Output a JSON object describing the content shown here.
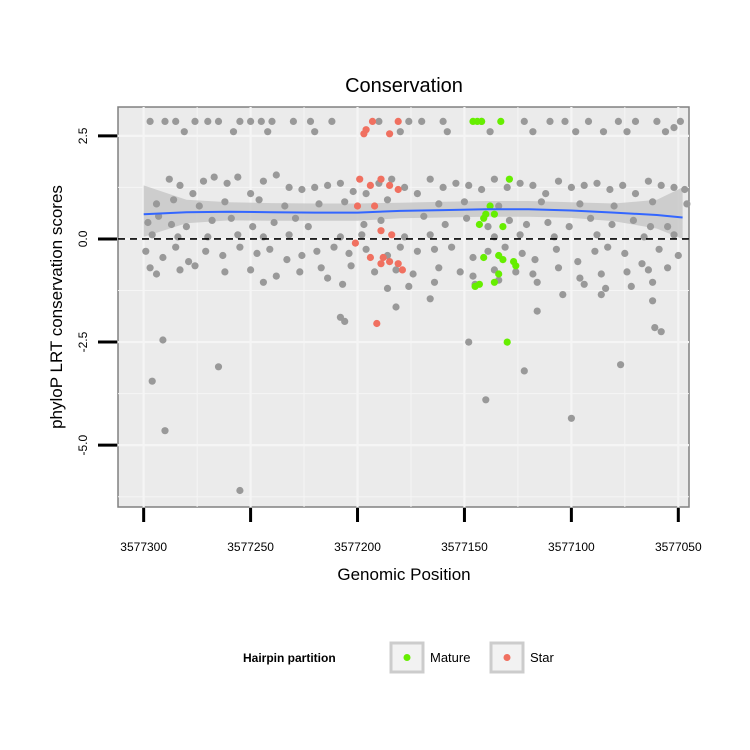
{
  "chart_data": {
    "type": "scatter",
    "title": "Conservation",
    "xlabel": "Genomic Position",
    "ylabel": "phyloP LRT conservation scores",
    "xlim": [
      3577312,
      3577045
    ],
    "ylim": [
      -6.5,
      3.2
    ],
    "x_reversed": true,
    "x_ticks": [
      3577300,
      3577250,
      3577200,
      3577150,
      3577100,
      3577050
    ],
    "x_tick_labels": [
      "3577300",
      "3577250",
      "3577200",
      "3577150",
      "3577100",
      "3577050"
    ],
    "y_ticks": [
      2.5,
      0.0,
      -2.5,
      -5.0
    ],
    "y_tick_labels": [
      "2.5",
      "0.0",
      "-2.5",
      "-5.0"
    ],
    "reference_line": {
      "y": 0,
      "style": "dashed",
      "color": "#000000"
    },
    "legend": {
      "title": "Hairpin partition",
      "position": "bottom",
      "entries": [
        {
          "label": "Mature",
          "color": "#66ee00"
        },
        {
          "label": "Star",
          "color": "#f07060"
        }
      ]
    },
    "colors": {
      "other": "#999999",
      "Mature": "#66ee00",
      "Star": "#f07060",
      "smooth": "#3366ff",
      "band": "#c8c8c8",
      "panel": "#ebebeb",
      "grid": "#f5f5f5"
    },
    "smooth": {
      "x": [
        3577300,
        3577280,
        3577260,
        3577240,
        3577220,
        3577200,
        3577180,
        3577160,
        3577140,
        3577120,
        3577100,
        3577080,
        3577060,
        3577048
      ],
      "y": [
        0.6,
        0.65,
        0.66,
        0.65,
        0.64,
        0.64,
        0.68,
        0.7,
        0.72,
        0.72,
        0.69,
        0.64,
        0.58,
        0.52
      ],
      "lower": [
        0.05,
        0.38,
        0.45,
        0.44,
        0.44,
        0.44,
        0.5,
        0.52,
        0.54,
        0.54,
        0.51,
        0.43,
        0.25,
        0.0
      ],
      "upper": [
        1.3,
        0.95,
        0.89,
        0.87,
        0.86,
        0.86,
        0.88,
        0.9,
        0.92,
        0.92,
        0.89,
        0.86,
        0.95,
        1.25
      ]
    },
    "series": [
      {
        "name": "Other",
        "points": [
          [
            3577297,
            2.85
          ],
          [
            3577290,
            2.85
          ],
          [
            3577285,
            2.85
          ],
          [
            3577276,
            2.85
          ],
          [
            3577270,
            2.85
          ],
          [
            3577265,
            2.85
          ],
          [
            3577255,
            2.85
          ],
          [
            3577250,
            2.85
          ],
          [
            3577245,
            2.85
          ],
          [
            3577240,
            2.85
          ],
          [
            3577230,
            2.85
          ],
          [
            3577222,
            2.85
          ],
          [
            3577212,
            2.85
          ],
          [
            3577190,
            2.85
          ],
          [
            3577176,
            2.85
          ],
          [
            3577170,
            2.85
          ],
          [
            3577160,
            2.85
          ],
          [
            3577142,
            2.85
          ],
          [
            3577122,
            2.85
          ],
          [
            3577110,
            2.85
          ],
          [
            3577103,
            2.85
          ],
          [
            3577092,
            2.85
          ],
          [
            3577078,
            2.85
          ],
          [
            3577070,
            2.85
          ],
          [
            3577060,
            2.85
          ],
          [
            3577049,
            2.85
          ],
          [
            3577281,
            2.6
          ],
          [
            3577258,
            2.6
          ],
          [
            3577242,
            2.6
          ],
          [
            3577220,
            2.6
          ],
          [
            3577180,
            2.6
          ],
          [
            3577158,
            2.6
          ],
          [
            3577138,
            2.6
          ],
          [
            3577118,
            2.6
          ],
          [
            3577098,
            2.6
          ],
          [
            3577085,
            2.6
          ],
          [
            3577074,
            2.6
          ],
          [
            3577056,
            2.6
          ],
          [
            3577052,
            2.7
          ],
          [
            3577288,
            1.45
          ],
          [
            3577283,
            1.3
          ],
          [
            3577277,
            1.1
          ],
          [
            3577272,
            1.4
          ],
          [
            3577267,
            1.5
          ],
          [
            3577261,
            1.35
          ],
          [
            3577256,
            1.5
          ],
          [
            3577250,
            1.1
          ],
          [
            3577244,
            1.4
          ],
          [
            3577238,
            1.55
          ],
          [
            3577232,
            1.25
          ],
          [
            3577226,
            1.2
          ],
          [
            3577220,
            1.25
          ],
          [
            3577214,
            1.3
          ],
          [
            3577208,
            1.35
          ],
          [
            3577202,
            1.15
          ],
          [
            3577196,
            1.1
          ],
          [
            3577190,
            1.35
          ],
          [
            3577184,
            1.45
          ],
          [
            3577178,
            1.25
          ],
          [
            3577172,
            1.1
          ],
          [
            3577166,
            1.45
          ],
          [
            3577160,
            1.25
          ],
          [
            3577154,
            1.35
          ],
          [
            3577148,
            1.3
          ],
          [
            3577142,
            1.2
          ],
          [
            3577136,
            1.45
          ],
          [
            3577130,
            1.25
          ],
          [
            3577124,
            1.35
          ],
          [
            3577118,
            1.3
          ],
          [
            3577112,
            1.1
          ],
          [
            3577106,
            1.4
          ],
          [
            3577100,
            1.25
          ],
          [
            3577094,
            1.3
          ],
          [
            3577088,
            1.35
          ],
          [
            3577082,
            1.2
          ],
          [
            3577076,
            1.3
          ],
          [
            3577070,
            1.1
          ],
          [
            3577064,
            1.4
          ],
          [
            3577058,
            1.3
          ],
          [
            3577052,
            1.25
          ],
          [
            3577047,
            1.2
          ],
          [
            3577294,
            0.85
          ],
          [
            3577286,
            0.95
          ],
          [
            3577274,
            0.8
          ],
          [
            3577262,
            0.9
          ],
          [
            3577246,
            0.95
          ],
          [
            3577234,
            0.8
          ],
          [
            3577218,
            0.85
          ],
          [
            3577206,
            0.9
          ],
          [
            3577186,
            0.95
          ],
          [
            3577162,
            0.85
          ],
          [
            3577150,
            0.9
          ],
          [
            3577134,
            0.8
          ],
          [
            3577114,
            0.9
          ],
          [
            3577096,
            0.85
          ],
          [
            3577080,
            0.8
          ],
          [
            3577062,
            0.9
          ],
          [
            3577046,
            0.85
          ],
          [
            3577298,
            0.4
          ],
          [
            3577293,
            0.55
          ],
          [
            3577287,
            0.35
          ],
          [
            3577280,
            0.3
          ],
          [
            3577268,
            0.45
          ],
          [
            3577259,
            0.5
          ],
          [
            3577249,
            0.3
          ],
          [
            3577239,
            0.4
          ],
          [
            3577229,
            0.5
          ],
          [
            3577223,
            0.3
          ],
          [
            3577197,
            0.35
          ],
          [
            3577189,
            0.45
          ],
          [
            3577169,
            0.55
          ],
          [
            3577159,
            0.35
          ],
          [
            3577149,
            0.5
          ],
          [
            3577139,
            0.3
          ],
          [
            3577129,
            0.45
          ],
          [
            3577121,
            0.35
          ],
          [
            3577111,
            0.4
          ],
          [
            3577101,
            0.3
          ],
          [
            3577091,
            0.5
          ],
          [
            3577081,
            0.35
          ],
          [
            3577071,
            0.45
          ],
          [
            3577063,
            0.3
          ],
          [
            3577055,
            0.3
          ],
          [
            3577296,
            0.1
          ],
          [
            3577284,
            0.05
          ],
          [
            3577270,
            0.05
          ],
          [
            3577256,
            0.1
          ],
          [
            3577244,
            0.05
          ],
          [
            3577232,
            0.1
          ],
          [
            3577208,
            0.05
          ],
          [
            3577198,
            0.1
          ],
          [
            3577178,
            0.05
          ],
          [
            3577166,
            0.1
          ],
          [
            3577136,
            0.05
          ],
          [
            3577124,
            0.1
          ],
          [
            3577108,
            0.05
          ],
          [
            3577088,
            0.1
          ],
          [
            3577066,
            0.05
          ],
          [
            3577052,
            0.1
          ],
          [
            3577299,
            -0.3
          ],
          [
            3577291,
            -0.45
          ],
          [
            3577285,
            -0.2
          ],
          [
            3577279,
            -0.55
          ],
          [
            3577271,
            -0.3
          ],
          [
            3577263,
            -0.4
          ],
          [
            3577255,
            -0.2
          ],
          [
            3577247,
            -0.35
          ],
          [
            3577241,
            -0.25
          ],
          [
            3577233,
            -0.5
          ],
          [
            3577226,
            -0.4
          ],
          [
            3577219,
            -0.3
          ],
          [
            3577211,
            -0.2
          ],
          [
            3577204,
            -0.35
          ],
          [
            3577196,
            -0.25
          ],
          [
            3577186,
            -0.4
          ],
          [
            3577180,
            -0.2
          ],
          [
            3577172,
            -0.3
          ],
          [
            3577164,
            -0.25
          ],
          [
            3577156,
            -0.2
          ],
          [
            3577146,
            -0.45
          ],
          [
            3577139,
            -0.3
          ],
          [
            3577131,
            -0.2
          ],
          [
            3577123,
            -0.35
          ],
          [
            3577117,
            -0.5
          ],
          [
            3577107,
            -0.25
          ],
          [
            3577097,
            -0.55
          ],
          [
            3577089,
            -0.3
          ],
          [
            3577083,
            -0.2
          ],
          [
            3577075,
            -0.35
          ],
          [
            3577067,
            -0.6
          ],
          [
            3577059,
            -0.25
          ],
          [
            3577050,
            -0.4
          ],
          [
            3577297,
            -0.7
          ],
          [
            3577294,
            -0.85
          ],
          [
            3577283,
            -0.75
          ],
          [
            3577276,
            -0.65
          ],
          [
            3577262,
            -0.8
          ],
          [
            3577250,
            -0.75
          ],
          [
            3577238,
            -0.9
          ],
          [
            3577227,
            -0.8
          ],
          [
            3577217,
            -0.7
          ],
          [
            3577203,
            -0.65
          ],
          [
            3577192,
            -0.8
          ],
          [
            3577182,
            -0.75
          ],
          [
            3577174,
            -0.85
          ],
          [
            3577162,
            -0.7
          ],
          [
            3577152,
            -0.8
          ],
          [
            3577146,
            -0.9
          ],
          [
            3577136,
            -0.75
          ],
          [
            3577126,
            -0.8
          ],
          [
            3577118,
            -0.85
          ],
          [
            3577106,
            -0.7
          ],
          [
            3577096,
            -0.95
          ],
          [
            3577086,
            -0.85
          ],
          [
            3577074,
            -0.8
          ],
          [
            3577064,
            -0.75
          ],
          [
            3577055,
            -0.7
          ],
          [
            3577244,
            -1.05
          ],
          [
            3577214,
            -0.95
          ],
          [
            3577207,
            -1.1
          ],
          [
            3577186,
            -1.2
          ],
          [
            3577176,
            -1.15
          ],
          [
            3577164,
            -1.05
          ],
          [
            3577145,
            -1.1
          ],
          [
            3577134,
            -1.0
          ],
          [
            3577116,
            -1.05
          ],
          [
            3577104,
            -1.35
          ],
          [
            3577094,
            -1.1
          ],
          [
            3577084,
            -1.2
          ],
          [
            3577072,
            -1.15
          ],
          [
            3577062,
            -1.05
          ],
          [
            3577208,
            -1.9
          ],
          [
            3577206,
            -2.0
          ],
          [
            3577182,
            -1.65
          ],
          [
            3577166,
            -1.45
          ],
          [
            3577116,
            -1.75
          ],
          [
            3577086,
            -1.35
          ],
          [
            3577062,
            -1.5
          ],
          [
            3577291,
            -2.45
          ],
          [
            3577148,
            -2.5
          ],
          [
            3577061,
            -2.15
          ],
          [
            3577058,
            -2.25
          ],
          [
            3577296,
            -3.45
          ],
          [
            3577265,
            -3.1
          ],
          [
            3577140,
            -3.9
          ],
          [
            3577122,
            -3.2
          ],
          [
            3577077,
            -3.05
          ],
          [
            3577100,
            -4.35
          ],
          [
            3577290,
            -4.65
          ],
          [
            3577255,
            -6.1
          ]
        ]
      },
      {
        "name": "Mature",
        "points": [
          [
            3577146,
            2.85
          ],
          [
            3577144,
            2.85
          ],
          [
            3577142,
            2.85
          ],
          [
            3577133,
            2.85
          ],
          [
            3577129,
            1.45
          ],
          [
            3577138,
            0.8
          ],
          [
            3577140,
            0.6
          ],
          [
            3577141,
            0.5
          ],
          [
            3577136,
            0.6
          ],
          [
            3577143,
            0.35
          ],
          [
            3577132,
            0.3
          ],
          [
            3577141,
            -0.45
          ],
          [
            3577134,
            -0.4
          ],
          [
            3577132,
            -0.5
          ],
          [
            3577127,
            -0.55
          ],
          [
            3577126,
            -0.65
          ],
          [
            3577134,
            -0.85
          ],
          [
            3577136,
            -1.05
          ],
          [
            3577143,
            -1.1
          ],
          [
            3577145,
            -1.15
          ],
          [
            3577130,
            -2.5
          ]
        ]
      },
      {
        "name": "Star",
        "points": [
          [
            3577197,
            2.55
          ],
          [
            3577196,
            2.65
          ],
          [
            3577193,
            2.85
          ],
          [
            3577185,
            2.55
          ],
          [
            3577181,
            2.85
          ],
          [
            3577199,
            1.45
          ],
          [
            3577194,
            1.3
          ],
          [
            3577189,
            1.45
          ],
          [
            3577185,
            1.3
          ],
          [
            3577181,
            1.2
          ],
          [
            3577200,
            0.8
          ],
          [
            3577192,
            0.8
          ],
          [
            3577189,
            0.2
          ],
          [
            3577184,
            0.1
          ],
          [
            3577201,
            -0.1
          ],
          [
            3577194,
            -0.45
          ],
          [
            3577188,
            -0.45
          ],
          [
            3577185,
            -0.55
          ],
          [
            3577181,
            -0.6
          ],
          [
            3577179,
            -0.75
          ],
          [
            3577189,
            -0.6
          ],
          [
            3577191,
            -2.05
          ]
        ]
      }
    ]
  }
}
